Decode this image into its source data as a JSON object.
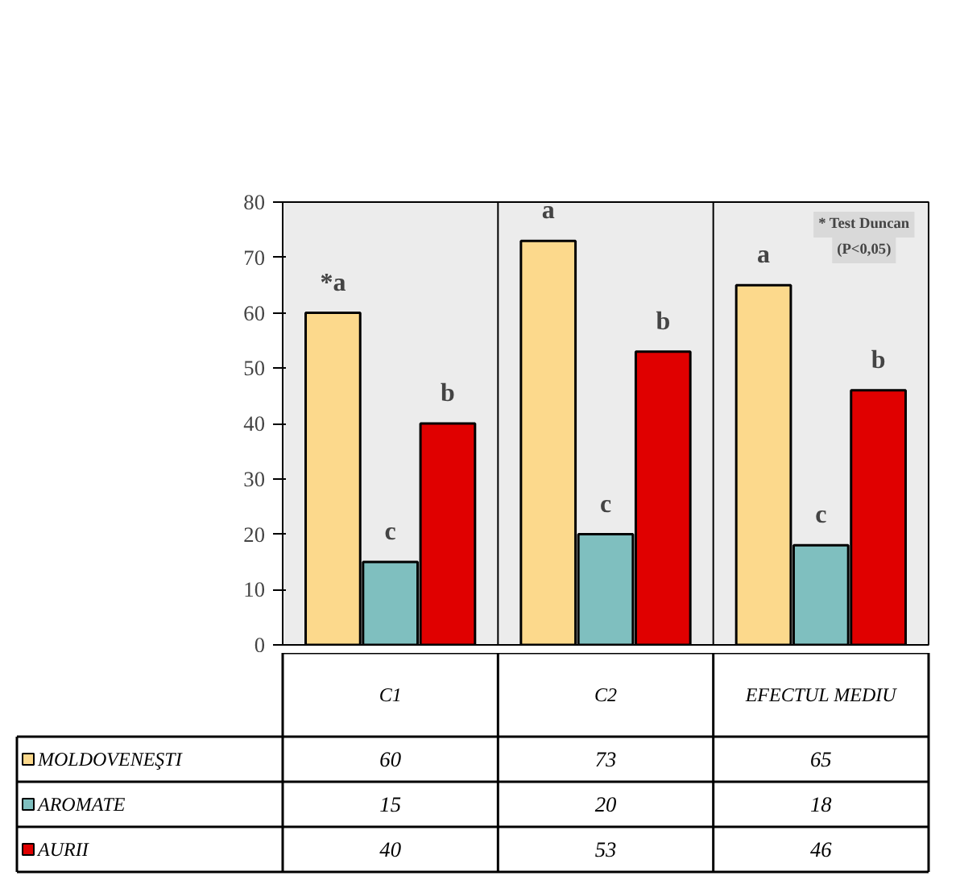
{
  "chart_data": {
    "type": "bar",
    "categories": [
      "C1",
      "C2",
      "EFECTUL MEDIU"
    ],
    "series": [
      {
        "name": "MOLDOVENEŞTI",
        "color": "#fcd98c",
        "values": [
          60,
          73,
          65
        ]
      },
      {
        "name": "AROMATE",
        "color": "#7fbfbf",
        "values": [
          15,
          20,
          18
        ]
      },
      {
        "name": "AURII",
        "color": "#e00000",
        "values": [
          40,
          53,
          46
        ]
      }
    ],
    "ylim": [
      0,
      80
    ],
    "yticks": [
      0,
      10,
      20,
      30,
      40,
      50,
      60,
      70,
      80
    ],
    "data_labels": true,
    "grid": false,
    "legend": "bottom left",
    "annotations": [
      "*a",
      "c",
      "b",
      "a",
      "c",
      "b",
      "a",
      "c",
      "b",
      "* Test Duncan",
      "(P<0,05)"
    ]
  }
}
